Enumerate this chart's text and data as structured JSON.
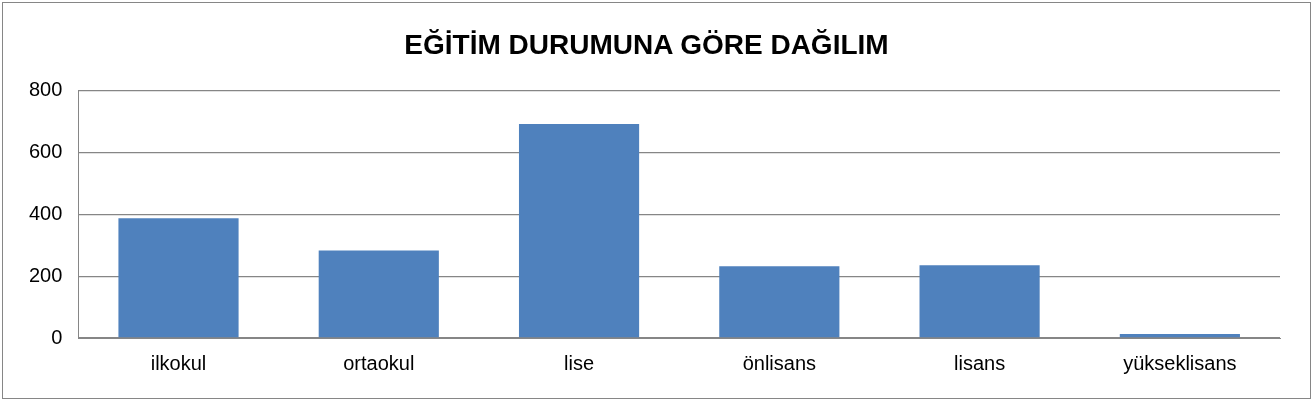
{
  "chart_data": {
    "type": "bar",
    "title": "EĞİTİM DURUMUNA GÖRE DAĞILIM",
    "categories": [
      "ilkokul",
      "ortaokul",
      "lise",
      "önlisans",
      "lisans",
      "yükseklisans"
    ],
    "values": [
      387,
      283,
      692,
      232,
      235,
      13
    ],
    "color": "#4f81bd",
    "ylim": [
      0,
      800
    ],
    "yticks": [
      0,
      200,
      400,
      600,
      800
    ],
    "grid": "y",
    "legend": false
  }
}
